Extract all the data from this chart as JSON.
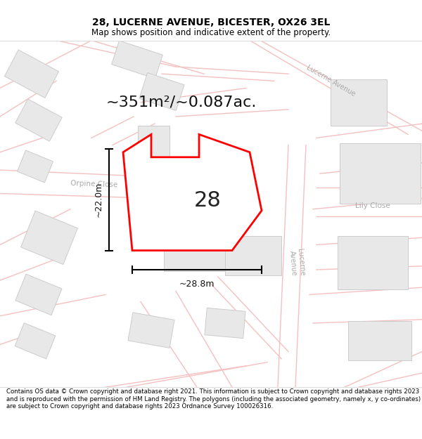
{
  "title": "28, LUCERNE AVENUE, BICESTER, OX26 3EL",
  "subtitle": "Map shows position and indicative extent of the property.",
  "area_text": "~351m²/~0.087ac.",
  "plot_number": "28",
  "width_label": "~28.8m",
  "height_label": "~22.0m",
  "footer": "Contains OS data © Crown copyright and database right 2021. This information is subject to Crown copyright and database rights 2023 and is reproduced with the permission of HM Land Registry. The polygons (including the associated geometry, namely x, y co-ordinates) are subject to Crown copyright and database rights 2023 Ordnance Survey 100026316.",
  "bg_color": "#ffffff",
  "plot_fill": "#ffffff",
  "plot_edge": "#ff0000",
  "road_color": "#f5c0c0",
  "road_outline_color": "#c8c8c8",
  "building_fill": "#e8e8e8",
  "building_edge": "#cccccc",
  "label_color": "#aaaaaa",
  "title_fontsize": 10,
  "subtitle_fontsize": 8.5,
  "footer_fontsize": 6.2,
  "area_fontsize": 16,
  "number_fontsize": 22
}
